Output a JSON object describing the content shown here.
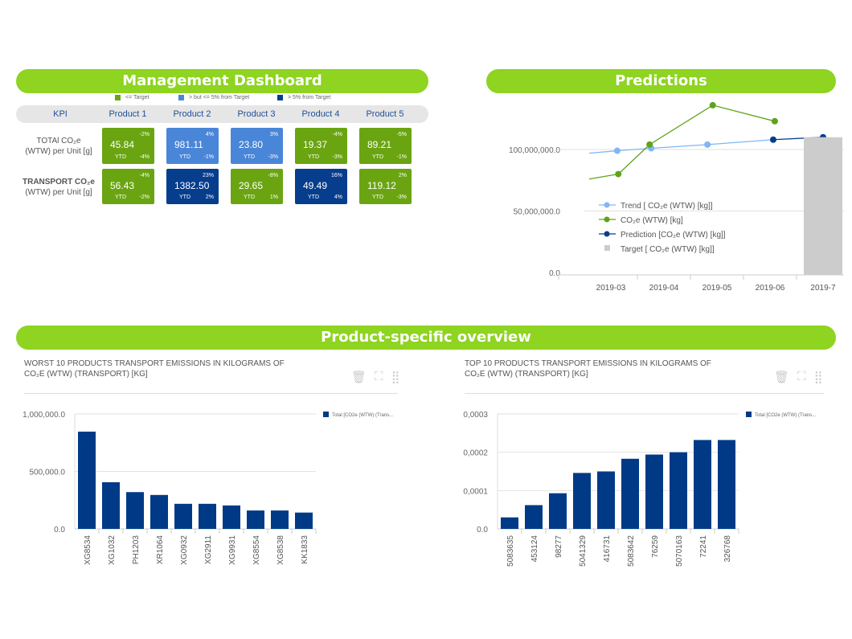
{
  "management": {
    "title": "Management Dashboard",
    "legend": [
      {
        "label": "<= Target",
        "color": "#6aa511"
      },
      {
        "label": "> but <= 5% from Target",
        "color": "#4a86d8"
      },
      {
        "label": "> 5% from Target",
        "color": "#063d8c"
      }
    ],
    "kpi_header": "KPI",
    "products": [
      "Product 1",
      "Product 2",
      "Product 3",
      "Product 4",
      "Product 5"
    ],
    "rows": [
      {
        "label1": "TOTAl CO₂e",
        "label2": "(WTW) per Unit [g]",
        "bold": false,
        "cells": [
          {
            "value": "45.84",
            "pct": "-2%",
            "ytd": "YTD",
            "ytd_pct": "-4%",
            "status": "green"
          },
          {
            "value": "981.11",
            "pct": "4%",
            "ytd": "YTD",
            "ytd_pct": "-1%",
            "status": "light"
          },
          {
            "value": "23.80",
            "pct": "3%",
            "ytd": "YTD",
            "ytd_pct": "-3%",
            "status": "light"
          },
          {
            "value": "19.37",
            "pct": "-4%",
            "ytd": "YTD",
            "ytd_pct": "-3%",
            "status": "green"
          },
          {
            "value": "89.21",
            "pct": "-5%",
            "ytd": "YTD",
            "ytd_pct": "-1%",
            "status": "green"
          }
        ]
      },
      {
        "label1": "TRANSPORT CO₂e",
        "label2": "(WTW) per Unit [g]",
        "bold": true,
        "cells": [
          {
            "value": "56.43",
            "pct": "-4%",
            "ytd": "YTD",
            "ytd_pct": "-2%",
            "status": "green"
          },
          {
            "value": "1382.50",
            "pct": "23%",
            "ytd": "YTD",
            "ytd_pct": "2%",
            "status": "dark"
          },
          {
            "value": "29.65",
            "pct": "-8%",
            "ytd": "YTD",
            "ytd_pct": "1%",
            "status": "green"
          },
          {
            "value": "49.49",
            "pct": "16%",
            "ytd": "YTD",
            "ytd_pct": "4%",
            "status": "dark"
          },
          {
            "value": "119.12",
            "pct": "2%",
            "ytd": "YTD",
            "ytd_pct": "-3%",
            "status": "green"
          }
        ]
      }
    ]
  },
  "predictions": {
    "title": "Predictions"
  },
  "overview": {
    "title": "Product-specific overview"
  },
  "colors": {
    "green": "#6aa511",
    "light": "#4a86d8",
    "dark": "#063d8c",
    "header": "#8ed420",
    "bar": "#003a87",
    "trend": "#7fb6f5",
    "co2": "#5fa318",
    "target": "#cccccc"
  },
  "chart_data": [
    {
      "type": "line",
      "title": "Predictions",
      "categories": [
        "2019-03",
        "2019-04",
        "2019-05",
        "2019-06",
        "2019-7"
      ],
      "ylim": [
        0,
        150000000
      ],
      "yticks": [
        {
          "v": 0,
          "label": "0.0"
        },
        {
          "v": 50000000,
          "label": "50,000,000.0"
        },
        {
          "v": 100000000,
          "label": "100,000,000.0"
        }
      ],
      "series": [
        {
          "name": "Trend [ CO₂e (WTW) [kg]]",
          "kind": "line",
          "color": "#7fb6f5",
          "line_start": {
            "x": -0.41,
            "y": 97000000
          },
          "points": [
            {
              "x": 0.12,
              "y": 99000000
            },
            {
              "x": 0.76,
              "y": 101000000
            },
            {
              "x": 1.82,
              "y": 104000000
            }
          ]
        },
        {
          "name": "CO₂e (WTW) [kg]",
          "kind": "line",
          "color": "#5fa318",
          "line_start": {
            "x": -0.41,
            "y": 76000000
          },
          "points": [
            {
              "x": 0.14,
              "y": 80000000
            },
            {
              "x": 0.73,
              "y": 104000000
            },
            {
              "x": 1.92,
              "y": 136000000
            },
            {
              "x": 3.09,
              "y": 123000000
            }
          ]
        },
        {
          "name": "Prediction [CO₂e (WTW) [kg]]",
          "kind": "line",
          "color": "#063d8c",
          "points": [
            {
              "x": 3.06,
              "y": 108000000
            },
            {
              "x": 4.0,
              "y": 110000000
            }
          ]
        },
        {
          "name": "Target [ CO₂e (WTW) [kg]]",
          "kind": "bar",
          "color": "#cccccc",
          "points": [
            {
              "x": 4,
              "y": 110000000
            }
          ]
        }
      ],
      "legend": "center-left"
    },
    {
      "type": "bar",
      "title": "WORST 10 PRODUCTS TRANSPORT EMISSIONS IN KILOGRAMS OF",
      "title2": "CO₂E (WTW) (TRANSPORT) [KG]",
      "legend_label": "Total [CO2e (WTW) (Trans...",
      "categories": [
        "XG8534",
        "XG1032",
        "PH1203",
        "XR1064",
        "XG0932",
        "XG2911",
        "XG9931",
        "XG8554",
        "XG8538",
        "KK1833"
      ],
      "values": [
        846000,
        406000,
        320000,
        295000,
        218000,
        218000,
        204000,
        160000,
        160000,
        142000
      ],
      "ylim": [
        0,
        1000000
      ],
      "yticks": [
        {
          "v": 0,
          "label": "0.0"
        },
        {
          "v": 500000,
          "label": "500,000.0"
        },
        {
          "v": 1000000,
          "label": "1,000,000.0"
        }
      ]
    },
    {
      "type": "bar",
      "title": "TOP 10 PRODUCTS TRANSPORT EMISSIONS IN KILOGRAMS OF",
      "title2": "CO₂E (WTW) (TRANSPORT) [KG]",
      "legend_label": "Total [CO2e (WTW) (Trans...",
      "categories": [
        "5083635",
        "453124",
        "98277",
        "5041329",
        "416731",
        "5083642",
        "76259",
        "5070163",
        "72241",
        "326768"
      ],
      "values": [
        3e-05,
        6.2e-05,
        9.3e-05,
        0.000146,
        0.00015,
        0.000183,
        0.000194,
        0.0002,
        0.000232,
        0.000232
      ],
      "ylim": [
        0,
        0.0003
      ],
      "yticks": [
        {
          "v": 0,
          "label": "0.0"
        },
        {
          "v": 0.0001,
          "label": "0,0001"
        },
        {
          "v": 0.0002,
          "label": "0,0002"
        },
        {
          "v": 0.0003,
          "label": "0,0003"
        }
      ]
    }
  ]
}
